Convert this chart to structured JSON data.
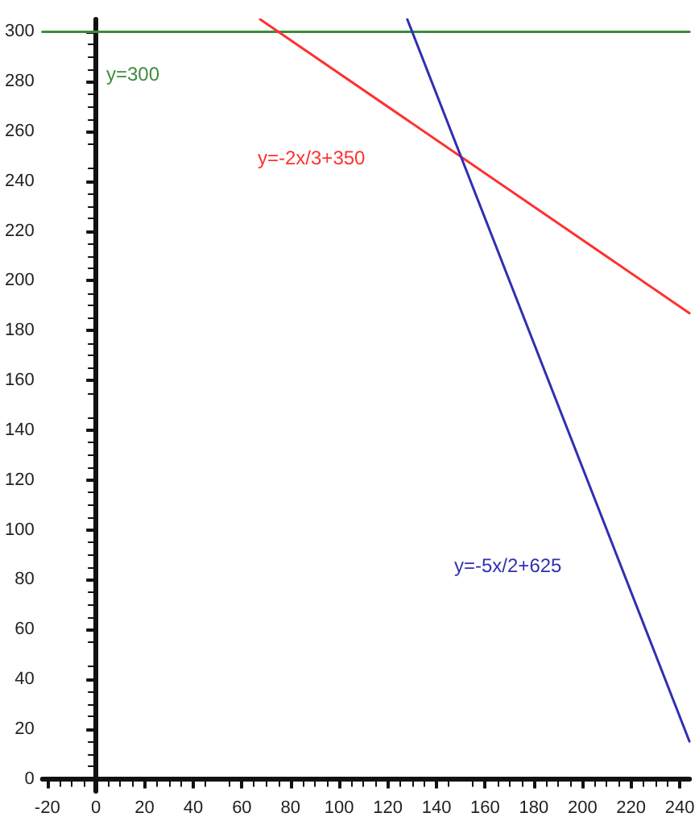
{
  "chart_data": {
    "type": "line",
    "xlim": [
      -22,
      244
    ],
    "ylim": [
      -5,
      305
    ],
    "xticks": [
      -20,
      0,
      20,
      40,
      60,
      80,
      100,
      120,
      140,
      160,
      180,
      200,
      220,
      240
    ],
    "yticks": [
      0,
      20,
      40,
      60,
      80,
      100,
      120,
      140,
      160,
      180,
      200,
      220,
      240,
      260,
      280,
      300
    ],
    "marker": "none",
    "line_style": "solid",
    "series": [
      {
        "color": "#3c8c3c",
        "x": [
          -22,
          244
        ],
        "values": [
          300,
          300
        ]
      },
      {
        "color": "#ff3030",
        "x": [
          67.5,
          244
        ],
        "values": [
          305,
          187
        ]
      },
      {
        "color": "#3030b0",
        "x": [
          128,
          244
        ],
        "values": [
          305,
          15
        ]
      }
    ],
    "annotations": [
      "y=300",
      "y=-2x/3+350",
      "y=-5x/2+625"
    ]
  }
}
